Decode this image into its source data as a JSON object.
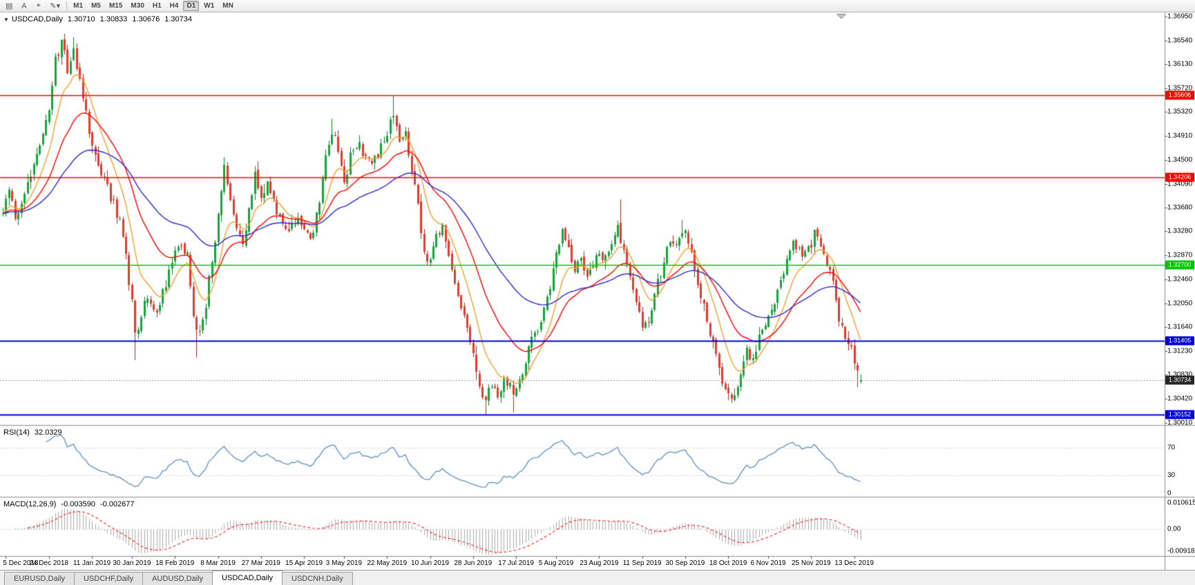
{
  "theme": {
    "up_color": "#17a33c",
    "up_border": "#0d7a2a",
    "down_color": "#e23a2e",
    "down_border": "#aa261c",
    "rsi_color": "#5a8fca",
    "macd_hist_color": "#a8a8a8",
    "macd_signal_color": "#ff3030",
    "level_line_color": "#c6c6c6",
    "bid_line_color": "#9a9a9a"
  },
  "toolbar": {
    "icon_buttons": [
      {
        "name": "chart-menu-button",
        "glyph": "▤"
      },
      {
        "name": "cursor-mode-button",
        "label": "A"
      },
      {
        "name": "crosshair-button",
        "glyph": "⌖"
      },
      {
        "name": "draw-tools-button",
        "glyph": "✎",
        "dropdown": "▾"
      }
    ],
    "timeframes": [
      "M1",
      "M5",
      "M15",
      "M30",
      "H1",
      "H4",
      "D1",
      "W1",
      "MN"
    ],
    "active_timeframe": "D1"
  },
  "main_pane": {
    "collapse_icon": "▼",
    "symbol_title": "USDCAD,Daily",
    "open": "1.30710",
    "high": "1.30833",
    "low": "1.30676",
    "close": "1.30734"
  },
  "rsi_pane": {
    "label": "RSI(14)",
    "value": "32.0329",
    "levels": [
      "70",
      "30",
      "0"
    ]
  },
  "macd_pane": {
    "label": "MACD(12,26,9)",
    "main_value": "-0.003590",
    "signal_value": "-0.002677",
    "scale_top": "0.010615",
    "scale_zero": "0.00",
    "scale_bottom": "-0.009181"
  },
  "price_axis": {
    "labels": [
      "1.36950",
      "1.36540",
      "1.36130",
      "1.35720",
      "1.35320",
      "1.34910",
      "1.34500",
      "1.34090",
      "1.33680",
      "1.33280",
      "1.32870",
      "1.32460",
      "1.32050",
      "1.31640",
      "1.31230",
      "1.30830",
      "1.30420",
      "1.30010"
    ],
    "badges": [
      {
        "name": "resistance-line-upper",
        "text": "1.35606",
        "price": 1.35606,
        "color": "#ff0000",
        "lw": 1.6,
        "kind": "hline"
      },
      {
        "name": "resistance-line-lower",
        "text": "1.34206",
        "price": 1.34206,
        "color": "#ff0000",
        "lw": 1.6,
        "kind": "hline"
      },
      {
        "name": "pivot-line-green",
        "text": "1.32700",
        "price": 1.327,
        "color": "#00c400",
        "lw": 1.6,
        "kind": "hline"
      },
      {
        "name": "support-line-upper",
        "text": "1.31405",
        "price": 1.31405,
        "color": "#0000dd",
        "lw": 2.2,
        "kind": "hline"
      },
      {
        "name": "current-bid",
        "text": "1.30734",
        "price": 1.30734,
        "color": "#262626",
        "lw": 1,
        "kind": "bid"
      },
      {
        "name": "support-line-lower",
        "text": "1.30152",
        "price": 1.30152,
        "color": "#0000dd",
        "lw": 2.2,
        "kind": "hline"
      }
    ]
  },
  "date_axis": {
    "ticks": [
      {
        "label": "5 Dec 2018",
        "index": 1
      },
      {
        "label": "24 Dec 2018",
        "index": 15
      },
      {
        "label": "11 Jan 2019",
        "index": 29
      },
      {
        "label": "30 Jan 2019",
        "index": 42
      },
      {
        "label": "18 Feb 2019",
        "index": 56
      },
      {
        "label": "8 Mar 2019",
        "index": 70
      },
      {
        "label": "27 Mar 2019",
        "index": 84
      },
      {
        "label": "15 Apr 2019",
        "index": 98
      },
      {
        "label": "3 May 2019",
        "index": 111
      },
      {
        "label": "22 May 2019",
        "index": 125
      },
      {
        "label": "10 Jun 2019",
        "index": 139
      },
      {
        "label": "28 Jun 2019",
        "index": 153
      },
      {
        "label": "17 Jul 2019",
        "index": 167
      },
      {
        "label": "5 Aug 2019",
        "index": 180
      },
      {
        "label": "23 Aug 2019",
        "index": 194
      },
      {
        "label": "11 Sep 2019",
        "index": 208
      },
      {
        "label": "30 Sep 2019",
        "index": 222
      },
      {
        "label": "18 Oct 2019",
        "index": 236
      },
      {
        "label": "6 Nov 2019",
        "index": 249
      },
      {
        "label": "25 Nov 2019",
        "index": 263
      },
      {
        "label": "13 Dec 2019",
        "index": 277
      }
    ]
  },
  "tabs": {
    "items": [
      "EURUSD,Daily",
      "USDCHF,Daily",
      "AUDUSD,Daily",
      "USDCAD,Daily",
      "USDCNH,Daily"
    ],
    "active": "USDCAD,Daily"
  },
  "chart_data": {
    "type": "candlestick",
    "symbol": "USDCAD",
    "timeframe": "Daily",
    "bar_count": 280,
    "visible_price_range": {
      "top": 1.3702,
      "bottom": 1.2997
    },
    "last_candle": {
      "open": 1.3071,
      "high": 1.30833,
      "low": 1.30676,
      "close": 1.30734
    },
    "horizontal_levels": [
      1.35606,
      1.34206,
      1.327,
      1.31405,
      1.30152
    ],
    "indicators": [
      {
        "name": "RSI",
        "period": 14,
        "current": 32.0329,
        "levels": [
          70,
          30
        ]
      },
      {
        "name": "MACD",
        "fast": 12,
        "slow": 26,
        "signal": 9,
        "current_main": -0.00359,
        "current_signal": -0.002677,
        "scale_max": 0.010615,
        "scale_min": -0.009181
      }
    ],
    "moving_averages": [
      {
        "period": 10,
        "method": "ema",
        "color": "#f0a030"
      },
      {
        "period": 25,
        "method": "ema",
        "color": "#ff0000"
      },
      {
        "period": 55,
        "method": "ema",
        "color": "#2929cc"
      }
    ],
    "price_path_anchors": [
      [
        0,
        1.336
      ],
      [
        2,
        1.34
      ],
      [
        4,
        1.3355
      ],
      [
        7,
        1.339
      ],
      [
        10,
        1.3445
      ],
      [
        13,
        1.349
      ],
      [
        15,
        1.3545
      ],
      [
        17,
        1.3615
      ],
      [
        19,
        1.365
      ],
      [
        21,
        1.3605
      ],
      [
        23,
        1.364
      ],
      [
        26,
        1.3565
      ],
      [
        29,
        1.347
      ],
      [
        32,
        1.3425
      ],
      [
        35,
        1.339
      ],
      [
        38,
        1.3345
      ],
      [
        40,
        1.3285
      ],
      [
        42,
        1.32
      ],
      [
        43,
        1.315
      ],
      [
        45,
        1.3185
      ],
      [
        47,
        1.3215
      ],
      [
        50,
        1.3185
      ],
      [
        53,
        1.3245
      ],
      [
        56,
        1.329
      ],
      [
        58,
        1.331
      ],
      [
        60,
        1.328
      ],
      [
        62,
        1.318
      ],
      [
        64,
        1.3155
      ],
      [
        66,
        1.32
      ],
      [
        68,
        1.328
      ],
      [
        70,
        1.336
      ],
      [
        72,
        1.343
      ],
      [
        74,
        1.339
      ],
      [
        76,
        1.333
      ],
      [
        78,
        1.3305
      ],
      [
        80,
        1.336
      ],
      [
        82,
        1.342
      ],
      [
        84,
        1.3395
      ],
      [
        86,
        1.3415
      ],
      [
        88,
        1.338
      ],
      [
        90,
        1.335
      ],
      [
        93,
        1.333
      ],
      [
        96,
        1.335
      ],
      [
        98,
        1.334
      ],
      [
        100,
        1.3315
      ],
      [
        103,
        1.338
      ],
      [
        105,
        1.345
      ],
      [
        107,
        1.35
      ],
      [
        109,
        1.3465
      ],
      [
        111,
        1.342
      ],
      [
        113,
        1.3455
      ],
      [
        116,
        1.3475
      ],
      [
        119,
        1.344
      ],
      [
        122,
        1.346
      ],
      [
        125,
        1.349
      ],
      [
        127,
        1.353
      ],
      [
        129,
        1.348
      ],
      [
        131,
        1.349
      ],
      [
        134,
        1.3405
      ],
      [
        136,
        1.333
      ],
      [
        138,
        1.3275
      ],
      [
        141,
        1.3315
      ],
      [
        143,
        1.333
      ],
      [
        145,
        1.329
      ],
      [
        147,
        1.324
      ],
      [
        149,
        1.32
      ],
      [
        151,
        1.316
      ],
      [
        153,
        1.311
      ],
      [
        155,
        1.306
      ],
      [
        157,
        1.304
      ],
      [
        159,
        1.307
      ],
      [
        161,
        1.305
      ],
      [
        163,
        1.308
      ],
      [
        165,
        1.306
      ],
      [
        166,
        1.304
      ],
      [
        168,
        1.3065
      ],
      [
        170,
        1.31
      ],
      [
        172,
        1.314
      ],
      [
        174,
        1.3165
      ],
      [
        176,
        1.32
      ],
      [
        178,
        1.324
      ],
      [
        180,
        1.329
      ],
      [
        182,
        1.333
      ],
      [
        184,
        1.33
      ],
      [
        186,
        1.326
      ],
      [
        188,
        1.328
      ],
      [
        190,
        1.325
      ],
      [
        192,
        1.327
      ],
      [
        194,
        1.33
      ],
      [
        196,
        1.328
      ],
      [
        198,
        1.3315
      ],
      [
        200,
        1.333
      ],
      [
        202,
        1.33
      ],
      [
        204,
        1.326
      ],
      [
        206,
        1.321
      ],
      [
        208,
        1.317
      ],
      [
        210,
        1.318
      ],
      [
        212,
        1.322
      ],
      [
        214,
        1.3255
      ],
      [
        216,
        1.3295
      ],
      [
        218,
        1.331
      ],
      [
        220,
        1.332
      ],
      [
        222,
        1.333
      ],
      [
        224,
        1.329
      ],
      [
        226,
        1.324
      ],
      [
        228,
        1.32
      ],
      [
        230,
        1.316
      ],
      [
        232,
        1.312
      ],
      [
        234,
        1.3075
      ],
      [
        236,
        1.3055
      ],
      [
        238,
        1.305
      ],
      [
        240,
        1.309
      ],
      [
        242,
        1.313
      ],
      [
        244,
        1.311
      ],
      [
        246,
        1.315
      ],
      [
        248,
        1.3165
      ],
      [
        250,
        1.32
      ],
      [
        252,
        1.323
      ],
      [
        254,
        1.326
      ],
      [
        256,
        1.329
      ],
      [
        258,
        1.331
      ],
      [
        260,
        1.3285
      ],
      [
        262,
        1.3305
      ],
      [
        264,
        1.332
      ],
      [
        266,
        1.33
      ],
      [
        268,
        1.328
      ],
      [
        270,
        1.3235
      ],
      [
        272,
        1.3185
      ],
      [
        274,
        1.3145
      ],
      [
        276,
        1.312
      ],
      [
        278,
        1.3085
      ],
      [
        279,
        1.30734
      ]
    ],
    "forced_extremes": [
      {
        "i": 20,
        "h": 1.36655
      },
      {
        "i": 23,
        "h": 1.366
      },
      {
        "i": 43,
        "l": 1.3108
      },
      {
        "i": 63,
        "l": 1.3113
      },
      {
        "i": 107,
        "h": 1.3521
      },
      {
        "i": 127,
        "h": 1.35605
      },
      {
        "i": 157,
        "l": 1.30152
      },
      {
        "i": 166,
        "l": 1.30185
      },
      {
        "i": 201,
        "h": 1.3382
      },
      {
        "i": 221,
        "h": 1.3347
      },
      {
        "i": 237,
        "l": 1.3035
      },
      {
        "i": 264,
        "h": 1.3327
      },
      {
        "i": 278,
        "l": 1.3062
      }
    ],
    "clamp": [
      1.3012,
      1.3668
    ],
    "noise_seed": 9,
    "noise_amplitude": 0.0009,
    "wick_amplitude": 0.0014
  }
}
